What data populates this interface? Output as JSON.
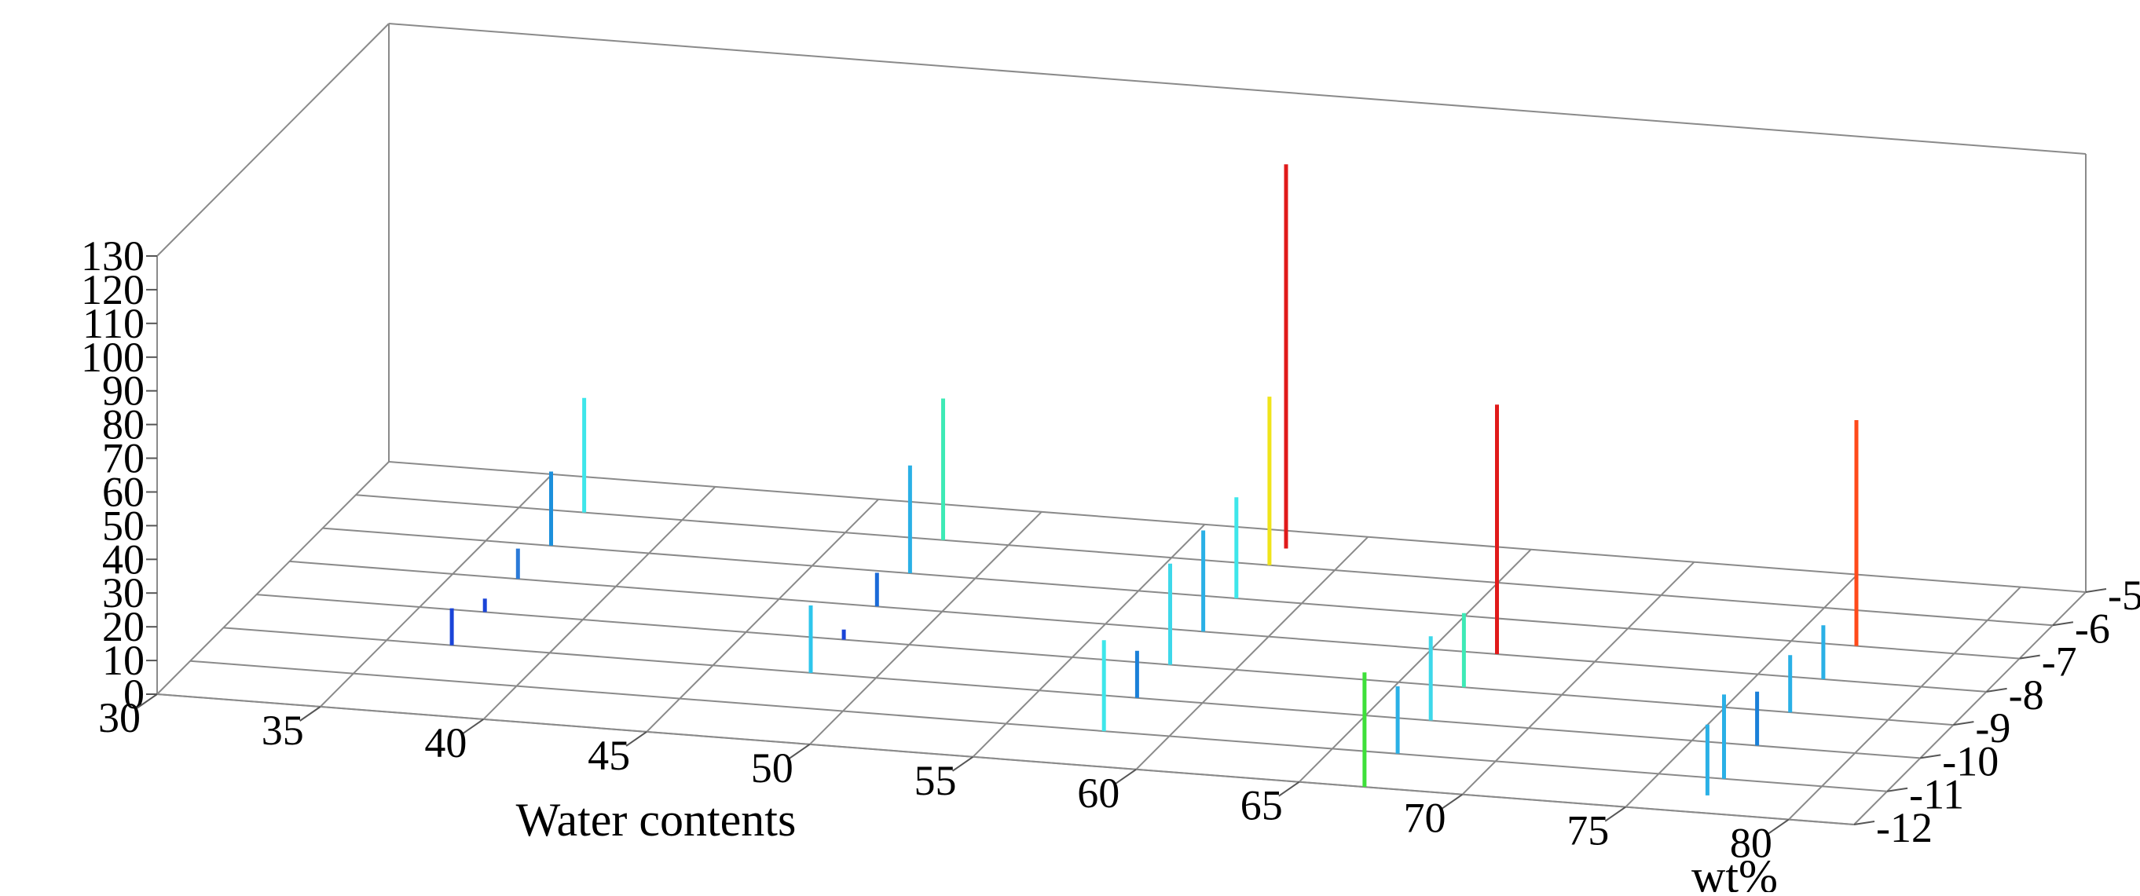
{
  "chart_data": {
    "type": "3d-stem",
    "xlabel": "Water contents",
    "ylabel": "wt%",
    "zlabel": "",
    "xlim": [
      30,
      82
    ],
    "ylim": [
      -12,
      -5
    ],
    "zlim": [
      0,
      130
    ],
    "x_ticks": [
      30,
      35,
      40,
      45,
      50,
      55,
      60,
      65,
      70,
      75,
      80
    ],
    "y_ticks": [
      -12,
      -11,
      -10,
      -9,
      -8,
      -7,
      -6,
      -5
    ],
    "z_ticks": [
      0,
      10,
      20,
      30,
      40,
      50,
      60,
      70,
      80,
      90,
      100,
      110,
      120,
      130
    ],
    "x_tick_labels": [
      "30",
      "35",
      "40",
      "45",
      "50",
      "55",
      "60",
      "65",
      "70",
      "75",
      "80"
    ],
    "y_tick_labels": [
      "-12",
      "-11",
      "-10",
      "-9",
      "-8",
      "-7",
      "-6",
      "-5"
    ],
    "z_tick_labels": [
      "0",
      "10",
      "20",
      "30",
      "40",
      "50",
      "60",
      "70",
      "80",
      "90",
      "100",
      "110",
      "120",
      "130"
    ],
    "grid": true,
    "points": [
      {
        "x": 37.0,
        "y": -10.0,
        "z": 11,
        "color": "#1a44d8"
      },
      {
        "x": 37.0,
        "y": -9.0,
        "z": 4,
        "color": "#1a44d8"
      },
      {
        "x": 37.0,
        "y": -8.0,
        "z": 9,
        "color": "#2a7ad8"
      },
      {
        "x": 37.0,
        "y": -7.0,
        "z": 22,
        "color": "#1c90dc"
      },
      {
        "x": 37.0,
        "y": -6.0,
        "z": 34,
        "color": "#3ee6ea"
      },
      {
        "x": 48.0,
        "y": -10.0,
        "z": 20,
        "color": "#2dc6ec"
      },
      {
        "x": 48.0,
        "y": -9.0,
        "z": 3,
        "color": "#1a44d8"
      },
      {
        "x": 48.0,
        "y": -8.0,
        "z": 10,
        "color": "#1a6ad8"
      },
      {
        "x": 48.0,
        "y": -7.0,
        "z": 32,
        "color": "#2ab0e6"
      },
      {
        "x": 48.0,
        "y": -6.0,
        "z": 42,
        "color": "#3eeab6"
      },
      {
        "x": 58.0,
        "y": -11.0,
        "z": 27,
        "color": "#3ee6ea"
      },
      {
        "x": 58.0,
        "y": -10.0,
        "z": 14,
        "color": "#1a80d8"
      },
      {
        "x": 58.0,
        "y": -9.0,
        "z": 30,
        "color": "#3ed8ea"
      },
      {
        "x": 58.0,
        "y": -8.0,
        "z": 30,
        "color": "#2ab0e6"
      },
      {
        "x": 58.0,
        "y": -7.0,
        "z": 30,
        "color": "#3ee6ea"
      },
      {
        "x": 58.0,
        "y": -6.0,
        "z": 50,
        "color": "#f0e41a"
      },
      {
        "x": 58.0,
        "y": -5.5,
        "z": 114,
        "color": "#e01a1a"
      },
      {
        "x": 67.0,
        "y": -12.0,
        "z": 34,
        "color": "#3ee03a"
      },
      {
        "x": 67.0,
        "y": -11.0,
        "z": 20,
        "color": "#2ab0e6"
      },
      {
        "x": 67.0,
        "y": -10.0,
        "z": 25,
        "color": "#3ed8ea"
      },
      {
        "x": 67.0,
        "y": -9.0,
        "z": 22,
        "color": "#3eeab6"
      },
      {
        "x": 67.0,
        "y": -8.0,
        "z": 74,
        "color": "#e01a1a"
      },
      {
        "x": 77.0,
        "y": -11.5,
        "z": 21,
        "color": "#2ab0e6"
      },
      {
        "x": 77.0,
        "y": -11.0,
        "z": 25,
        "color": "#2ab0e6"
      },
      {
        "x": 77.0,
        "y": -10.0,
        "z": 16,
        "color": "#1a80d8"
      },
      {
        "x": 77.0,
        "y": -9.0,
        "z": 17,
        "color": "#2ab0e6"
      },
      {
        "x": 77.0,
        "y": -8.0,
        "z": 16,
        "color": "#2ab0e6"
      },
      {
        "x": 77.0,
        "y": -7.0,
        "z": 67,
        "color": "#ff4a1a"
      }
    ]
  }
}
